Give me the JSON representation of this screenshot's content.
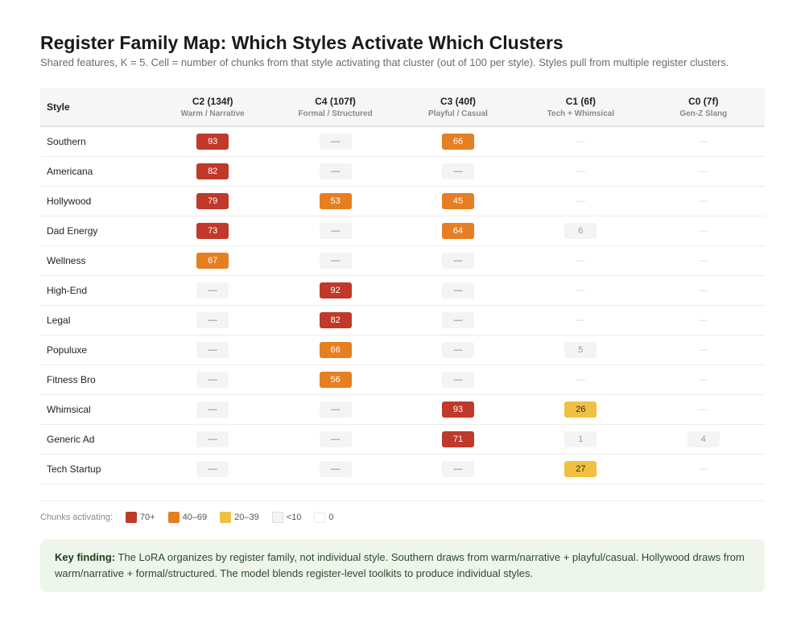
{
  "title": "Register Family Map: Which Styles Activate Which Clusters",
  "subtitle": "Shared features, K = 5. Cell = number of chunks from that style activating that cluster (out of 100 per style). Styles pull from multiple register clusters.",
  "table": {
    "style_header": "Style",
    "columns": [
      {
        "title": "C2 (134f)",
        "sub": "Warm / Narrative"
      },
      {
        "title": "C4 (107f)",
        "sub": "Formal / Structured"
      },
      {
        "title": "C3 (40f)",
        "sub": "Playful / Casual"
      },
      {
        "title": "C1 (6f)",
        "sub": "Tech + Whimsical"
      },
      {
        "title": "C0 (7f)",
        "sub": "Gen-Z Slang"
      }
    ],
    "dash": "—",
    "rows": [
      {
        "style": "Southern",
        "values": [
          93,
          0,
          66,
          0,
          0
        ],
        "kinds": [
          "v",
          "d",
          "v",
          "z",
          "z"
        ]
      },
      {
        "style": "Americana",
        "values": [
          82,
          0,
          0,
          0,
          0
        ],
        "kinds": [
          "v",
          "d",
          "d",
          "z",
          "z"
        ]
      },
      {
        "style": "Hollywood",
        "values": [
          79,
          53,
          45,
          0,
          0
        ],
        "kinds": [
          "v",
          "v",
          "v",
          "z",
          "z"
        ]
      },
      {
        "style": "Dad Energy",
        "values": [
          73,
          0,
          64,
          6,
          0
        ],
        "kinds": [
          "v",
          "d",
          "v",
          "v",
          "z"
        ]
      },
      {
        "style": "Wellness",
        "values": [
          67,
          0,
          0,
          0,
          0
        ],
        "kinds": [
          "v",
          "d",
          "d",
          "z",
          "z"
        ]
      },
      {
        "style": "High-End",
        "values": [
          0,
          92,
          0,
          0,
          0
        ],
        "kinds": [
          "d",
          "v",
          "d",
          "z",
          "z"
        ]
      },
      {
        "style": "Legal",
        "values": [
          0,
          82,
          0,
          0,
          0
        ],
        "kinds": [
          "d",
          "v",
          "d",
          "z",
          "z"
        ]
      },
      {
        "style": "Populuxe",
        "values": [
          0,
          66,
          0,
          5,
          0
        ],
        "kinds": [
          "d",
          "v",
          "d",
          "v",
          "z"
        ]
      },
      {
        "style": "Fitness Bro",
        "values": [
          0,
          56,
          0,
          0,
          0
        ],
        "kinds": [
          "d",
          "v",
          "d",
          "z",
          "z"
        ]
      },
      {
        "style": "Whimsical",
        "values": [
          0,
          0,
          93,
          26,
          0
        ],
        "kinds": [
          "d",
          "d",
          "v",
          "v",
          "z"
        ]
      },
      {
        "style": "Generic Ad",
        "values": [
          0,
          0,
          71,
          1,
          4
        ],
        "kinds": [
          "d",
          "d",
          "v",
          "v",
          "v"
        ]
      },
      {
        "style": "Tech Startup",
        "values": [
          0,
          0,
          0,
          27,
          0
        ],
        "kinds": [
          "d",
          "d",
          "d",
          "v",
          "z"
        ]
      }
    ]
  },
  "legend": {
    "label": "Chunks activating:",
    "items": [
      {
        "label": "70+",
        "color": "#c0392b"
      },
      {
        "label": "40–69",
        "color": "#e67e22"
      },
      {
        "label": "20–39",
        "color": "#f0c040"
      },
      {
        "label": "<10",
        "color": "#f4f4f4"
      },
      {
        "label": "0",
        "color": "#ffffff"
      }
    ]
  },
  "finding": {
    "lead": "Key finding:",
    "text": "The LoRA organizes by register family, not individual style. Southern draws from warm/narrative + playful/casual. Hollywood draws from warm/narrative + formal/structured. The model blends register-level toolkits to produce individual styles."
  }
}
